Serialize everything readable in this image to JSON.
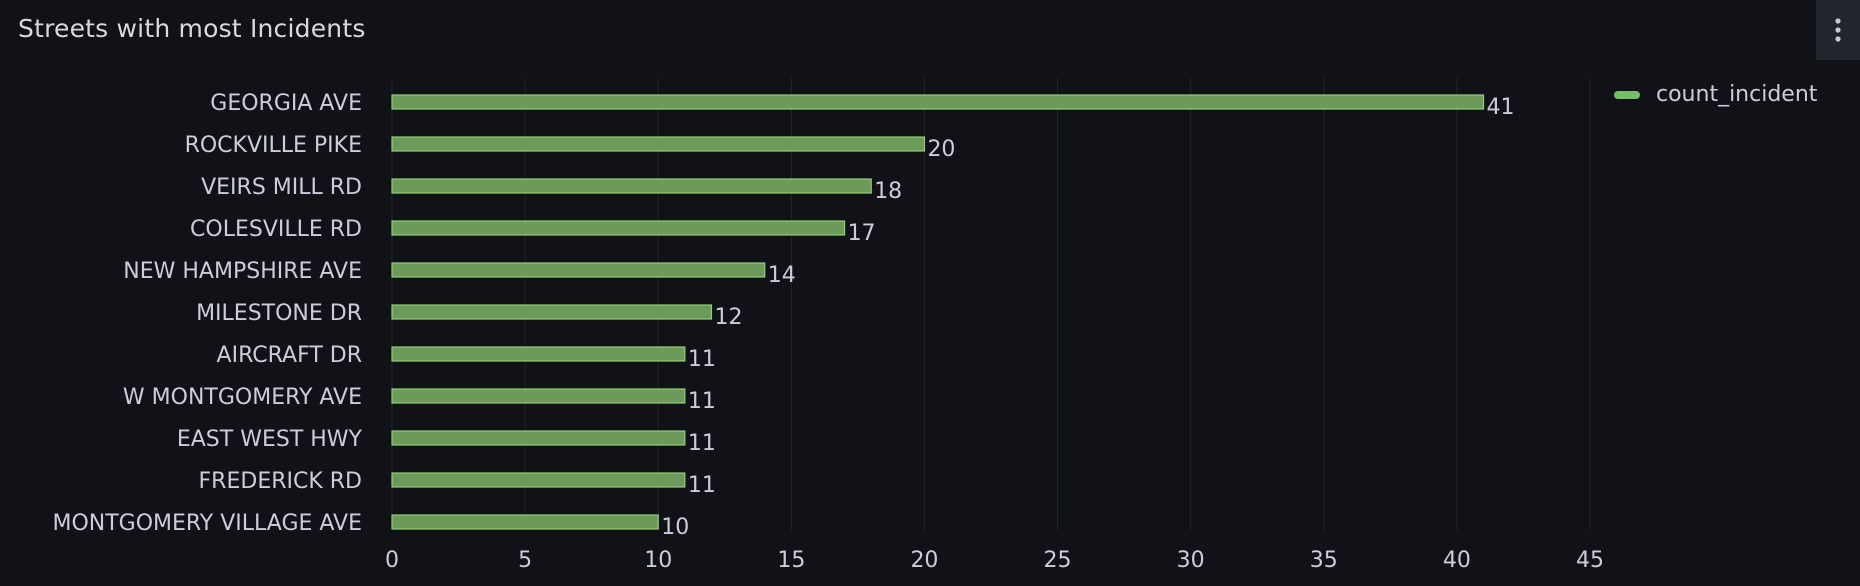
{
  "panel": {
    "title": "Streets with most Incidents",
    "menu_icon": "kebab-vertical-icon"
  },
  "colors": {
    "bar_fill": "#6c9a59",
    "bar_stroke": "#8fd07a",
    "legend_swatch": "#73bf69",
    "grid": "#24262d",
    "text": "#ccccdc"
  },
  "chart_data": {
    "type": "bar",
    "orientation": "horizontal",
    "title": "Streets with most Incidents",
    "categories": [
      "GEORGIA AVE",
      "ROCKVILLE PIKE",
      "VEIRS MILL RD",
      "COLESVILLE RD",
      "NEW HAMPSHIRE AVE",
      "MILESTONE DR",
      "AIRCRAFT DR",
      "W MONTGOMERY AVE",
      "EAST WEST HWY",
      "FREDERICK RD",
      "MONTGOMERY VILLAGE AVE"
    ],
    "series": [
      {
        "name": "count_incident",
        "values": [
          41,
          20,
          18,
          17,
          14,
          12,
          11,
          11,
          11,
          11,
          10
        ]
      }
    ],
    "x_ticks": [
      0,
      5,
      10,
      15,
      20,
      25,
      30,
      35,
      40,
      45
    ],
    "xlim": [
      0,
      45
    ],
    "xlabel": "",
    "ylabel": "",
    "grid": true,
    "legend": "top-right",
    "data_labels": true
  }
}
